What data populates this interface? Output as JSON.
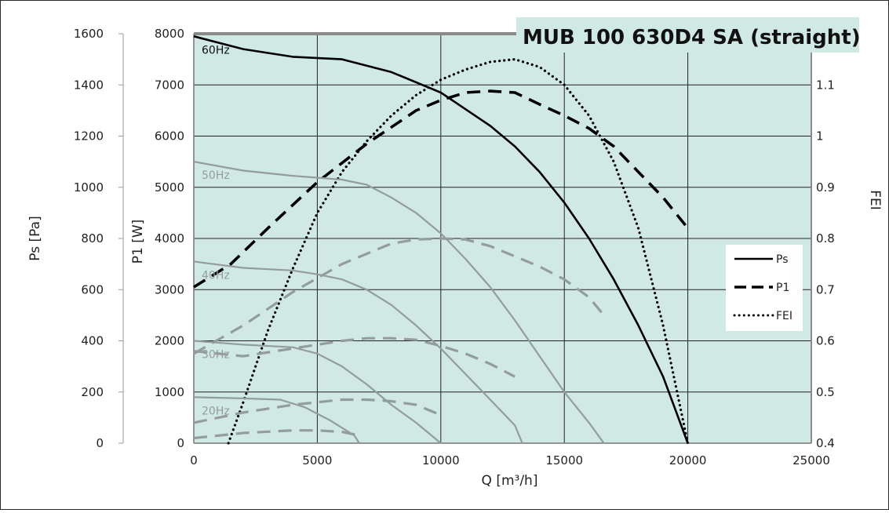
{
  "chart_data": {
    "type": "line",
    "title": "MUB 100 630D4 SA (straight)",
    "xlabel": "Q [m³/h]",
    "xlim": [
      0,
      25000
    ],
    "x_ticks": [
      "0",
      "5000",
      "10000",
      "15000",
      "20000",
      "25000"
    ],
    "y_axes": [
      {
        "label": "Ps [Pa]",
        "ylim": [
          0,
          1600
        ],
        "ticks": [
          "0",
          "200",
          "400",
          "600",
          "800",
          "1000",
          "1200",
          "1400",
          "1600"
        ]
      },
      {
        "label": "P1 [W]",
        "ylim": [
          0,
          8000
        ],
        "ticks": [
          "0",
          "1000",
          "2000",
          "3000",
          "4000",
          "5000",
          "6000",
          "7000",
          "8000"
        ]
      },
      {
        "label": "FEI",
        "ylim": [
          0.4,
          1.2
        ],
        "ticks": [
          "0.4",
          "0.5",
          "0.6",
          "0.7",
          "0.8",
          "0.9",
          "1",
          "1.1"
        ]
      }
    ],
    "grid": true,
    "legend_position": "right",
    "legend": [
      "Ps",
      "P1",
      "FEI"
    ],
    "speed_labels": [
      "60Hz",
      "50Hz",
      "40Hz",
      "30Hz",
      "20Hz"
    ],
    "colors": {
      "plot_bg": "#d0e9e5",
      "primary": "#000000",
      "secondary": "#939d9b",
      "title_bg": "#d0e9e5"
    },
    "series": [
      {
        "name": "Ps",
        "speed": "60Hz",
        "axis": "Ps",
        "style": "solid",
        "points": [
          [
            0,
            1590
          ],
          [
            2000,
            1540
          ],
          [
            4000,
            1510
          ],
          [
            6000,
            1500
          ],
          [
            8000,
            1450
          ],
          [
            10000,
            1370
          ],
          [
            12000,
            1240
          ],
          [
            13000,
            1160
          ],
          [
            14000,
            1060
          ],
          [
            15000,
            940
          ],
          [
            16000,
            800
          ],
          [
            17000,
            640
          ],
          [
            18000,
            460
          ],
          [
            19000,
            260
          ],
          [
            20000,
            0
          ]
        ]
      },
      {
        "name": "P1",
        "speed": "60Hz",
        "axis": "P1",
        "style": "dashed",
        "points": [
          [
            0,
            3050
          ],
          [
            1500,
            3500
          ],
          [
            3000,
            4200
          ],
          [
            5000,
            5100
          ],
          [
            7000,
            5850
          ],
          [
            9000,
            6500
          ],
          [
            10000,
            6700
          ],
          [
            11000,
            6850
          ],
          [
            12000,
            6880
          ],
          [
            13000,
            6850
          ],
          [
            14000,
            6620
          ],
          [
            15000,
            6400
          ],
          [
            16000,
            6150
          ],
          [
            17000,
            5800
          ],
          [
            18000,
            5300
          ],
          [
            19000,
            4800
          ],
          [
            20000,
            4200
          ]
        ]
      },
      {
        "name": "FEI",
        "speed": "60Hz",
        "axis": "FEI",
        "style": "dotted",
        "points": [
          [
            1400,
            0.4
          ],
          [
            2000,
            0.48
          ],
          [
            3000,
            0.62
          ],
          [
            4000,
            0.74
          ],
          [
            5000,
            0.85
          ],
          [
            6000,
            0.93
          ],
          [
            7000,
            0.99
          ],
          [
            8000,
            1.04
          ],
          [
            9000,
            1.08
          ],
          [
            10000,
            1.11
          ],
          [
            11000,
            1.13
          ],
          [
            12000,
            1.145
          ],
          [
            13000,
            1.15
          ],
          [
            14000,
            1.135
          ],
          [
            15000,
            1.1
          ],
          [
            16000,
            1.04
          ],
          [
            17000,
            0.95
          ],
          [
            18000,
            0.82
          ],
          [
            19000,
            0.63
          ],
          [
            20000,
            0.4
          ]
        ]
      },
      {
        "name": "Ps",
        "speed": "50Hz",
        "axis": "Ps",
        "style": "solid",
        "points": [
          [
            0,
            1100
          ],
          [
            2000,
            1065
          ],
          [
            4000,
            1045
          ],
          [
            6000,
            1030
          ],
          [
            7000,
            1010
          ],
          [
            8000,
            960
          ],
          [
            9000,
            900
          ],
          [
            10000,
            820
          ],
          [
            11000,
            720
          ],
          [
            12000,
            610
          ],
          [
            13000,
            480
          ],
          [
            14000,
            340
          ],
          [
            15000,
            200
          ],
          [
            16000,
            80
          ],
          [
            16600,
            0
          ]
        ]
      },
      {
        "name": "P1",
        "speed": "50Hz",
        "axis": "P1",
        "style": "dashed",
        "points": [
          [
            0,
            1750
          ],
          [
            2000,
            2300
          ],
          [
            4000,
            2950
          ],
          [
            6000,
            3500
          ],
          [
            8000,
            3900
          ],
          [
            9000,
            3980
          ],
          [
            10000,
            4000
          ],
          [
            11000,
            3980
          ],
          [
            12000,
            3850
          ],
          [
            13000,
            3650
          ],
          [
            14000,
            3450
          ],
          [
            15000,
            3200
          ],
          [
            16000,
            2850
          ],
          [
            16600,
            2500
          ]
        ]
      },
      {
        "name": "Ps",
        "speed": "40Hz",
        "axis": "Ps",
        "style": "solid",
        "points": [
          [
            0,
            710
          ],
          [
            2000,
            685
          ],
          [
            4000,
            675
          ],
          [
            5000,
            660
          ],
          [
            6000,
            640
          ],
          [
            7000,
            600
          ],
          [
            8000,
            540
          ],
          [
            9000,
            460
          ],
          [
            10000,
            370
          ],
          [
            11000,
            270
          ],
          [
            12000,
            170
          ],
          [
            13000,
            70
          ],
          [
            13300,
            0
          ]
        ]
      },
      {
        "name": "P1",
        "speed": "40Hz",
        "axis": "P1",
        "style": "dashed",
        "points": [
          [
            0,
            1800
          ],
          [
            2000,
            1700
          ],
          [
            4000,
            1850
          ],
          [
            6000,
            2000
          ],
          [
            7000,
            2050
          ],
          [
            8000,
            2050
          ],
          [
            9000,
            2020
          ],
          [
            10000,
            1900
          ],
          [
            11000,
            1750
          ],
          [
            12000,
            1550
          ],
          [
            13000,
            1300
          ]
        ]
      },
      {
        "name": "Ps",
        "speed": "30Hz",
        "axis": "Ps",
        "style": "solid",
        "points": [
          [
            0,
            400
          ],
          [
            2000,
            385
          ],
          [
            4000,
            375
          ],
          [
            5000,
            350
          ],
          [
            6000,
            300
          ],
          [
            7000,
            230
          ],
          [
            8000,
            150
          ],
          [
            9000,
            80
          ],
          [
            10000,
            0
          ]
        ]
      },
      {
        "name": "P1",
        "speed": "30Hz",
        "axis": "P1",
        "style": "dashed",
        "points": [
          [
            0,
            400
          ],
          [
            2000,
            600
          ],
          [
            4000,
            750
          ],
          [
            6000,
            850
          ],
          [
            7000,
            850
          ],
          [
            8000,
            820
          ],
          [
            9000,
            750
          ],
          [
            10000,
            550
          ]
        ]
      },
      {
        "name": "Ps",
        "speed": "20Hz",
        "axis": "Ps",
        "style": "solid",
        "points": [
          [
            0,
            180
          ],
          [
            2000,
            175
          ],
          [
            3500,
            170
          ],
          [
            4500,
            140
          ],
          [
            5500,
            90
          ],
          [
            6500,
            30
          ],
          [
            6700,
            0
          ]
        ]
      },
      {
        "name": "P1",
        "speed": "20Hz",
        "axis": "P1",
        "style": "dashed",
        "points": [
          [
            0,
            100
          ],
          [
            2000,
            200
          ],
          [
            4000,
            250
          ],
          [
            5000,
            250
          ],
          [
            6000,
            220
          ],
          [
            6700,
            150
          ]
        ]
      }
    ]
  }
}
